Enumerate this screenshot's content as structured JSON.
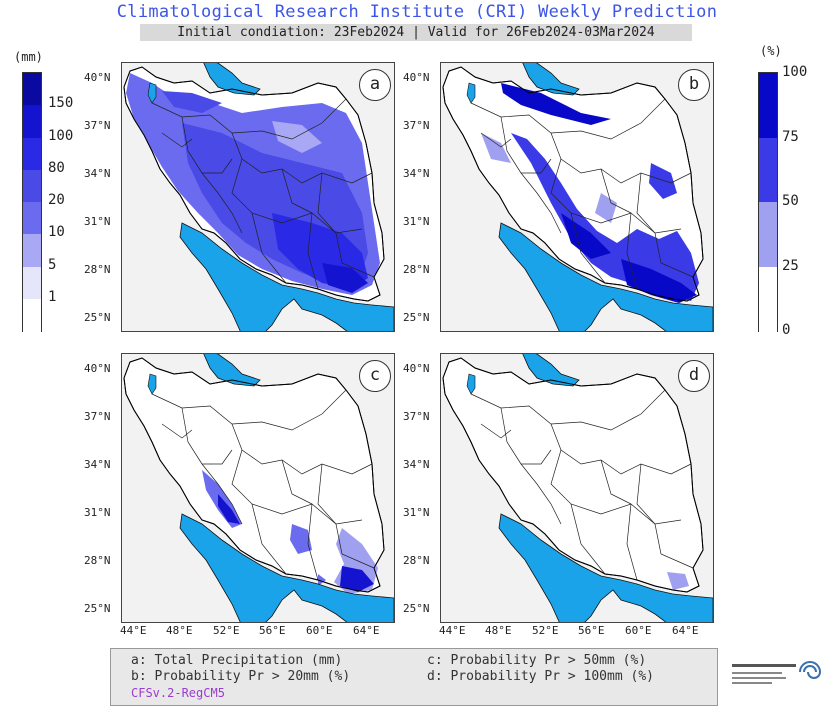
{
  "header": {
    "title": "Climatological Research Institute (CRI) Weekly Prediction",
    "subtitle": "Initial condiation: 23Feb2024 | Valid for 26Feb2024-03Mar2024"
  },
  "left_colorbar": {
    "unit": "(mm)",
    "labels": [
      "150",
      "100",
      "80",
      "20",
      "10",
      "5",
      "1"
    ],
    "colors": [
      "#0a0aa0",
      "#1414d0",
      "#2a2ae6",
      "#4a4ae6",
      "#6b6bf0",
      "#a8a8f5",
      "#e6e6fa",
      "#ffffff"
    ]
  },
  "right_colorbar": {
    "unit": "(%)",
    "labels": [
      "100",
      "75",
      "50",
      "25",
      "0"
    ],
    "colors": [
      "#0808c8",
      "#3a3ae6",
      "#a0a0f0",
      "#ffffff"
    ]
  },
  "panels": [
    {
      "id": "a",
      "label": "a"
    },
    {
      "id": "b",
      "label": "b"
    },
    {
      "id": "c",
      "label": "c"
    },
    {
      "id": "d",
      "label": "d"
    }
  ],
  "axes": {
    "lat_ticks": [
      "40°N",
      "37°N",
      "34°N",
      "31°N",
      "28°N",
      "25°N"
    ],
    "lon_ticks": [
      "44°E",
      "48°E",
      "52°E",
      "56°E",
      "60°E",
      "64°E"
    ]
  },
  "legend": {
    "a": "a: Total Precipitation (mm)",
    "b": "b: Probability Pr > 20mm (%)",
    "c": "c: Probability Pr > 50mm (%)",
    "d": "d: Probability Pr > 100mm (%)",
    "model": "CFSv.2-RegCM5"
  },
  "colors": {
    "water": "#1aa3e8",
    "land_outside": "#f2f2f2",
    "border": "#111111",
    "title_blue": "#3d55e6"
  }
}
